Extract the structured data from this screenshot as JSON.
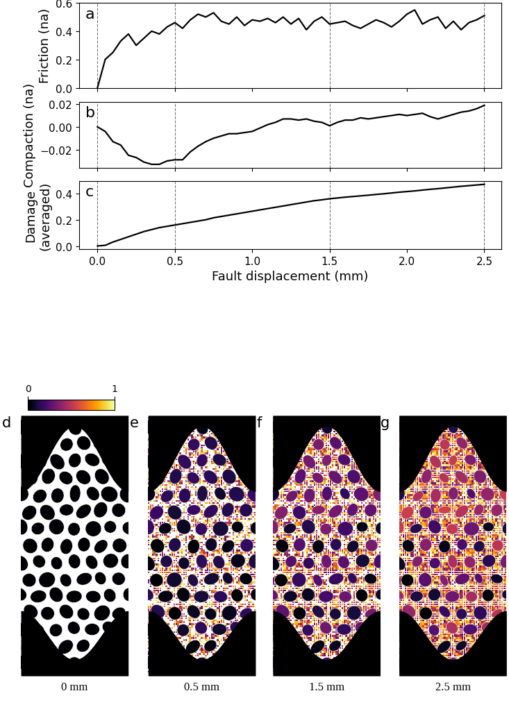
{
  "chart_data": [
    {
      "type": "line",
      "label": "a",
      "ylabel": "Friction (na)",
      "color": "#000000",
      "x": [
        0.0,
        0.05,
        0.1,
        0.15,
        0.2,
        0.25,
        0.3,
        0.35,
        0.4,
        0.45,
        0.5,
        0.55,
        0.6,
        0.65,
        0.7,
        0.75,
        0.8,
        0.85,
        0.9,
        0.95,
        1.0,
        1.05,
        1.1,
        1.15,
        1.2,
        1.25,
        1.3,
        1.35,
        1.4,
        1.45,
        1.5,
        1.55,
        1.6,
        1.65,
        1.7,
        1.75,
        1.8,
        1.85,
        1.9,
        1.95,
        2.0,
        2.05,
        2.1,
        2.15,
        2.2,
        2.25,
        2.3,
        2.35,
        2.4,
        2.45,
        2.5
      ],
      "values": [
        0.0,
        0.2,
        0.25,
        0.33,
        0.38,
        0.3,
        0.35,
        0.4,
        0.38,
        0.43,
        0.46,
        0.42,
        0.48,
        0.52,
        0.5,
        0.53,
        0.47,
        0.45,
        0.5,
        0.44,
        0.48,
        0.47,
        0.49,
        0.46,
        0.5,
        0.45,
        0.49,
        0.41,
        0.47,
        0.5,
        0.45,
        0.46,
        0.47,
        0.44,
        0.42,
        0.45,
        0.48,
        0.46,
        0.43,
        0.47,
        0.52,
        0.55,
        0.45,
        0.48,
        0.5,
        0.42,
        0.47,
        0.41,
        0.46,
        0.48,
        0.51
      ],
      "vlines": [
        0,
        0.5,
        1.5,
        2.5
      ],
      "xlim": [
        -0.12,
        2.61
      ],
      "xticks": [
        0,
        0.5,
        1,
        1.5,
        2,
        2.5
      ],
      "ylim": [
        0.0,
        0.6
      ],
      "yticks": [
        0.0,
        0.2,
        0.4,
        0.6
      ],
      "tick_labels": "y"
    },
    {
      "type": "line",
      "label": "b",
      "ylabel": "Compaction (na)",
      "color": "#000000",
      "x": [
        0.0,
        0.05,
        0.1,
        0.15,
        0.2,
        0.25,
        0.3,
        0.35,
        0.4,
        0.45,
        0.5,
        0.55,
        0.6,
        0.65,
        0.7,
        0.75,
        0.8,
        0.85,
        0.9,
        0.95,
        1.0,
        1.05,
        1.1,
        1.15,
        1.2,
        1.25,
        1.3,
        1.35,
        1.4,
        1.45,
        1.5,
        1.55,
        1.6,
        1.65,
        1.7,
        1.75,
        1.8,
        1.85,
        1.9,
        1.95,
        2.0,
        2.05,
        2.1,
        2.15,
        2.2,
        2.25,
        2.3,
        2.35,
        2.4,
        2.45,
        2.5
      ],
      "values": [
        0.0,
        -0.004,
        -0.013,
        -0.016,
        -0.025,
        -0.027,
        -0.031,
        -0.033,
        -0.033,
        -0.03,
        -0.029,
        -0.029,
        -0.022,
        -0.017,
        -0.013,
        -0.01,
        -0.008,
        -0.006,
        -0.006,
        -0.005,
        -0.004,
        -0.001,
        0.002,
        0.004,
        0.007,
        0.007,
        0.006,
        0.007,
        0.005,
        0.004,
        0.001,
        0.004,
        0.006,
        0.006,
        0.008,
        0.007,
        0.008,
        0.009,
        0.01,
        0.011,
        0.01,
        0.011,
        0.012,
        0.009,
        0.007,
        0.009,
        0.011,
        0.013,
        0.014,
        0.016,
        0.019
      ],
      "vlines": [
        0,
        0.5,
        1.5,
        2.5
      ],
      "xlim": [
        -0.12,
        2.61
      ],
      "xticks": [
        0,
        0.5,
        1,
        1.5,
        2,
        2.5
      ],
      "ylim": [
        -0.036,
        0.022
      ],
      "yticks": [
        {
          "value": -0.02,
          "label": "−0.02"
        },
        {
          "value": 0.0,
          "label": "0.00"
        },
        {
          "value": 0.02,
          "label": "0.02"
        }
      ],
      "tick_labels": "y"
    },
    {
      "type": "line",
      "label": "c",
      "ylabel": "Damage\n(averaged)",
      "xlabel": "Fault displacement (mm)",
      "color": "#000000",
      "x": [
        0.0,
        0.05,
        0.1,
        0.15,
        0.2,
        0.25,
        0.3,
        0.35,
        0.4,
        0.45,
        0.5,
        0.55,
        0.6,
        0.65,
        0.7,
        0.75,
        0.8,
        0.85,
        0.9,
        0.95,
        1.0,
        1.05,
        1.1,
        1.15,
        1.2,
        1.25,
        1.3,
        1.35,
        1.4,
        1.45,
        1.5,
        1.55,
        1.6,
        1.65,
        1.7,
        1.75,
        1.8,
        1.85,
        1.9,
        1.95,
        2.0,
        2.05,
        2.1,
        2.15,
        2.2,
        2.25,
        2.3,
        2.35,
        2.4,
        2.45,
        2.5
      ],
      "values": [
        0.0,
        0.005,
        0.03,
        0.05,
        0.07,
        0.09,
        0.11,
        0.125,
        0.14,
        0.15,
        0.16,
        0.17,
        0.18,
        0.19,
        0.2,
        0.215,
        0.225,
        0.235,
        0.245,
        0.255,
        0.265,
        0.275,
        0.285,
        0.295,
        0.305,
        0.315,
        0.325,
        0.335,
        0.345,
        0.352,
        0.36,
        0.366,
        0.372,
        0.377,
        0.382,
        0.387,
        0.393,
        0.398,
        0.404,
        0.41,
        0.415,
        0.42,
        0.426,
        0.432,
        0.437,
        0.443,
        0.449,
        0.455,
        0.46,
        0.465,
        0.47
      ],
      "vlines": [
        0,
        0.5,
        1.5,
        2.5
      ],
      "xlim": [
        -0.12,
        2.61
      ],
      "xticks": [
        {
          "value": 0,
          "label": "0.0"
        },
        {
          "value": 0.5,
          "label": "0.5"
        },
        {
          "value": 1,
          "label": "1.0"
        },
        {
          "value": 1.5,
          "label": "1.5"
        },
        {
          "value": 2,
          "label": "2.0"
        },
        {
          "value": 2.5,
          "label": "2.5"
        }
      ],
      "ylim": [
        -0.024,
        0.494
      ],
      "yticks": [
        0.0,
        0.2,
        0.4
      ]
    },
    {
      "type": "image",
      "colorbar": {
        "range": [
          0,
          1
        ],
        "ticks": [
          0,
          1
        ],
        "color": "inferno"
      },
      "panels": [
        {
          "label": "d",
          "caption": "0 mm"
        },
        {
          "label": "e",
          "caption": "0.5 mm"
        },
        {
          "label": "f",
          "caption": "1.5 mm"
        },
        {
          "label": "g",
          "caption": "2.5 mm"
        }
      ]
    }
  ]
}
